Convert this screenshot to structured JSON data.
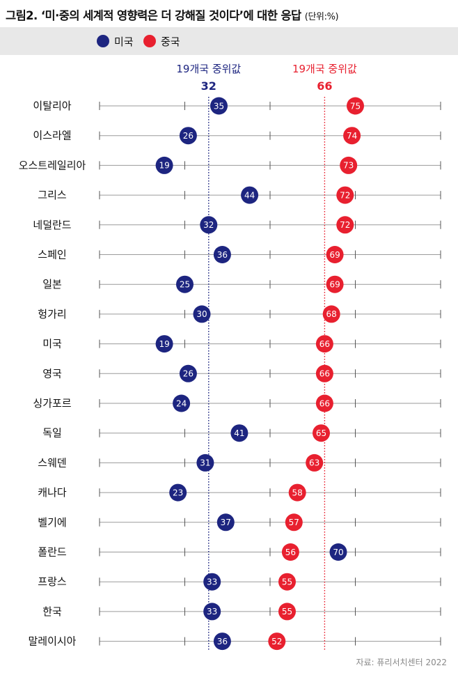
{
  "title": "그림2. ‘미·중의 세계적 영향력은 더 강해질 것이다’에 대한 응답",
  "unit": "(단위:%)",
  "legend": [
    {
      "name": "미국",
      "color": "#1d2580"
    },
    {
      "name": "중국",
      "color": "#e8202f"
    }
  ],
  "source": "자료: 퓨리서치센터 2022",
  "chart_data": {
    "type": "dot",
    "title": "‘미·중의 세계적 영향력은 더 강해질 것이다’에 대한 응답",
    "unit": "%",
    "xlim": [
      0,
      100
    ],
    "categories": [
      "이탈리아",
      "이스라엘",
      "오스트레일리아",
      "그리스",
      "네덜란드",
      "스페인",
      "일본",
      "헝가리",
      "미국",
      "영국",
      "싱가포르",
      "독일",
      "스웨덴",
      "캐나다",
      "벨기에",
      "폴란드",
      "프랑스",
      "한국",
      "말레이시아"
    ],
    "series": [
      {
        "name": "미국",
        "color": "#1d2580",
        "values": [
          35,
          26,
          19,
          44,
          32,
          36,
          25,
          30,
          19,
          26,
          24,
          41,
          31,
          23,
          37,
          70,
          33,
          33,
          36
        ]
      },
      {
        "name": "중국",
        "color": "#e8202f",
        "values": [
          75,
          74,
          73,
          72,
          72,
          69,
          69,
          68,
          66,
          66,
          66,
          65,
          63,
          58,
          57,
          56,
          55,
          55,
          52
        ]
      }
    ],
    "medians": [
      {
        "series": "미국",
        "label": "19개국 중위값",
        "value": 32,
        "color": "#1d2580"
      },
      {
        "series": "중국",
        "label": "19개국 중위값",
        "value": 66,
        "color": "#e8202f"
      }
    ]
  }
}
